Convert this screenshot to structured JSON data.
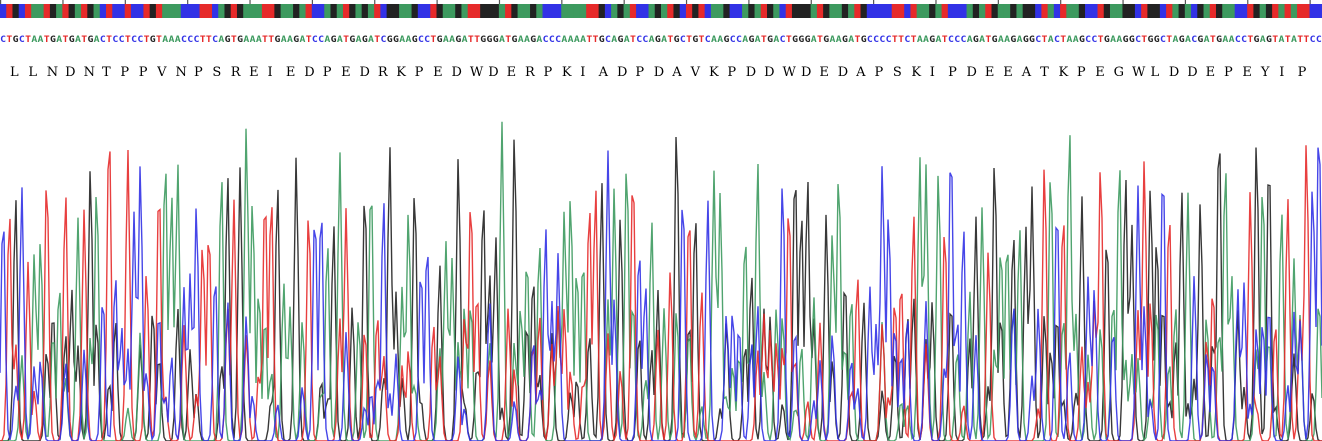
{
  "colors": {
    "A": "#3d9a5f",
    "C": "#3232e6",
    "G": "#222222",
    "T": "#e62a2a",
    "background": "#ffffff"
  },
  "sequence": "CTGCTAATGATGATGACTCCTCCTGTAAACCCTTCAGTGAAATTGAAGATCCAGATGAGATCGGAAGCCTGAAGATTGGGATGAAGACCCAAAATTGCAGATCCAGATGCTGTCAAGCCAGATGACTGGGATGAAGATGCCCCTTCTAAGATCCCAGATGAAGAGGCTACTAAGCCTGAAGGCTGGCTAGACGATGAACCTGAGTATATTCC",
  "chart_data": {
    "type": "line",
    "title": "",
    "xlabel": "",
    "ylabel": "",
    "protein": [
      "L",
      "L",
      "N",
      "D",
      "N",
      "T",
      "P",
      "P",
      "V",
      "N",
      "P",
      "S",
      "R",
      "E",
      "I",
      "E",
      "D",
      "P",
      "E",
      "D",
      "R",
      "K",
      "P",
      "E",
      "D",
      "W",
      "D",
      "E",
      "R",
      "P",
      "K",
      "I",
      "A",
      "D",
      "P",
      "D",
      "A",
      "V",
      "K",
      "P",
      "D",
      "D",
      "W",
      "D",
      "E",
      "D",
      "A",
      "P",
      "S",
      "K",
      "I",
      "P",
      "D",
      "E",
      "E",
      "A",
      "T",
      "K",
      "P",
      "E",
      "G",
      "W",
      "L",
      "D",
      "D",
      "E",
      "P",
      "E",
      "Y",
      "I",
      "P"
    ],
    "series": [
      {
        "channel": "G",
        "color": "#222222"
      },
      {
        "channel": "A",
        "color": "#3d9a5f"
      },
      {
        "channel": "T",
        "color": "#e62a2a"
      },
      {
        "channel": "C",
        "color": "#3232e6"
      }
    ],
    "ylim": [
      0,
      100
    ],
    "grid": false,
    "legend": "none"
  }
}
